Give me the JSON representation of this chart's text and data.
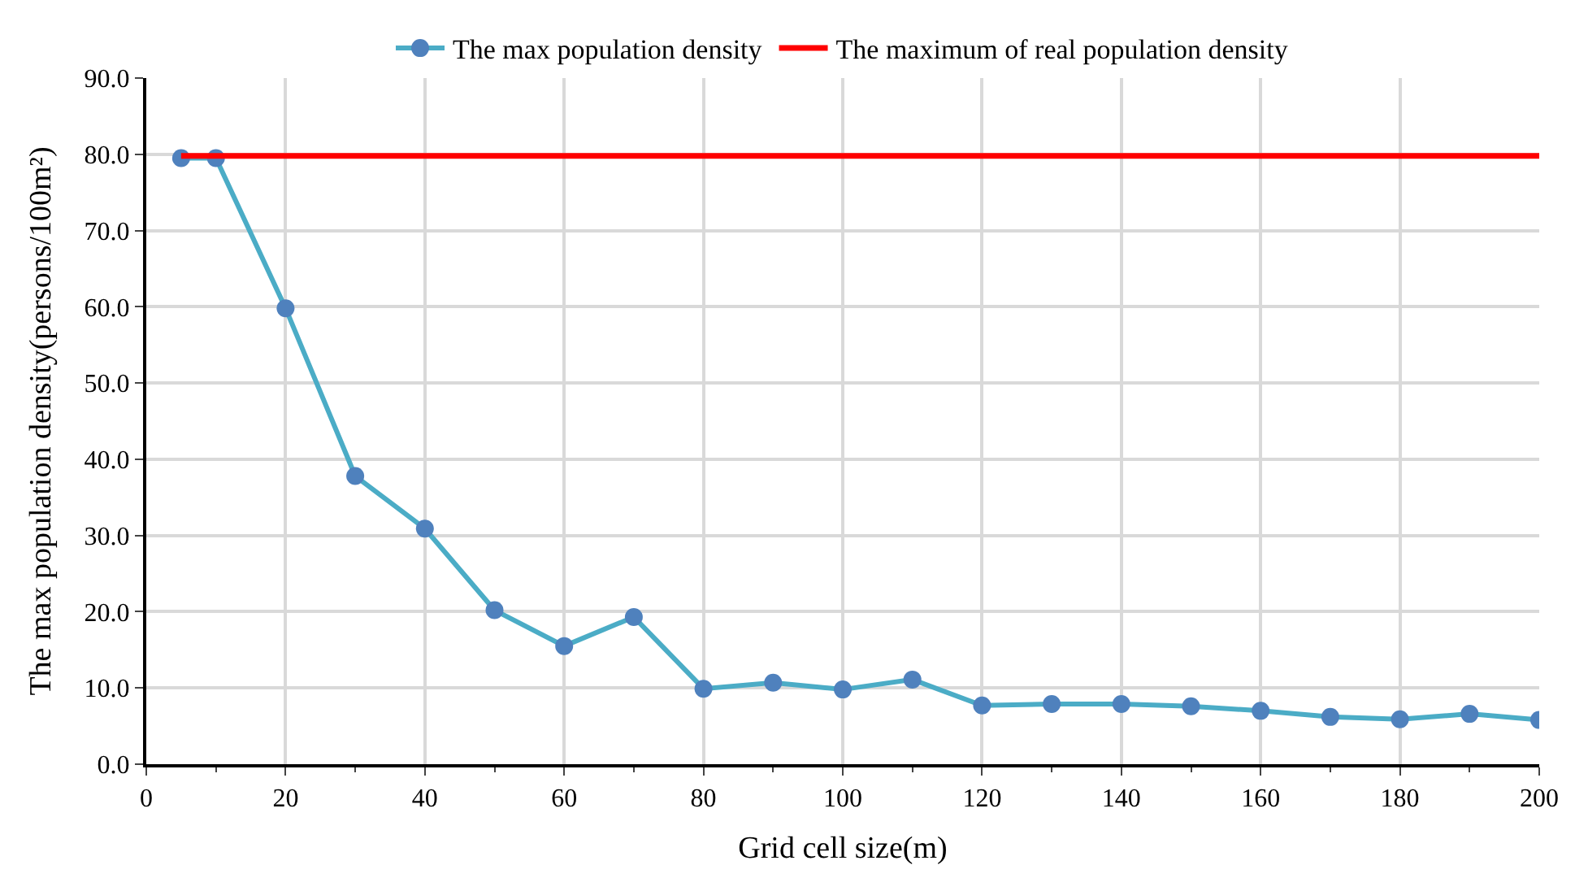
{
  "chart_data": {
    "type": "line",
    "xlabel": "Grid cell size(m)",
    "ylabel": "The max population density(persons/100m²)",
    "xlim": [
      0,
      200
    ],
    "xticks": [
      0,
      20,
      40,
      60,
      80,
      100,
      120,
      140,
      160,
      180,
      200
    ],
    "ylim": [
      0,
      90
    ],
    "yticks": [
      {
        "value": 0,
        "label": "0.0"
      },
      {
        "value": 10,
        "label": "10.0"
      },
      {
        "value": 20,
        "label": "20.0"
      },
      {
        "value": 30,
        "label": "30.0"
      },
      {
        "value": 40,
        "label": "40.0"
      },
      {
        "value": 50,
        "label": "50.0"
      },
      {
        "value": 60,
        "label": "60.0"
      },
      {
        "value": 70,
        "label": "70.0"
      },
      {
        "value": 80,
        "label": "80.0"
      },
      {
        "value": 90,
        "label": "90.0"
      }
    ],
    "grid": true,
    "legend": "top",
    "series": [
      {
        "name": "The max population density",
        "color": "#4bacc6",
        "marker": "circle",
        "colors": [
          "#4f81bd",
          "#4f81bd",
          "#4f81bd",
          "#4f81bd",
          "#4f81bd",
          "#4f81bd",
          "#4f81bd",
          "#4f81bd",
          "#4f81bd",
          "#4f81bd",
          "#4f81bd",
          "#4f81bd",
          "#4f81bd",
          "#4f81bd",
          "#4f81bd",
          "#4f81bd",
          "#4f81bd",
          "#4f81bd",
          "#4f81bd",
          "#4f81bd",
          "#4f81bd"
        ],
        "x": [
          5,
          10,
          20,
          30,
          40,
          50,
          60,
          70,
          80,
          90,
          100,
          110,
          120,
          130,
          140,
          150,
          160,
          170,
          180,
          190,
          200
        ],
        "values": [
          79.5,
          79.5,
          59.8,
          37.8,
          30.9,
          20.2,
          15.5,
          19.3,
          9.9,
          10.7,
          9.8,
          11.1,
          7.7,
          7.9,
          7.9,
          7.6,
          7.0,
          6.2,
          5.9,
          6.6,
          5.8
        ]
      },
      {
        "name": "The maximum of real population density",
        "color": "#ff0000",
        "marker": "none",
        "x": [
          5,
          200
        ],
        "values": [
          79.8,
          79.8
        ]
      }
    ]
  }
}
